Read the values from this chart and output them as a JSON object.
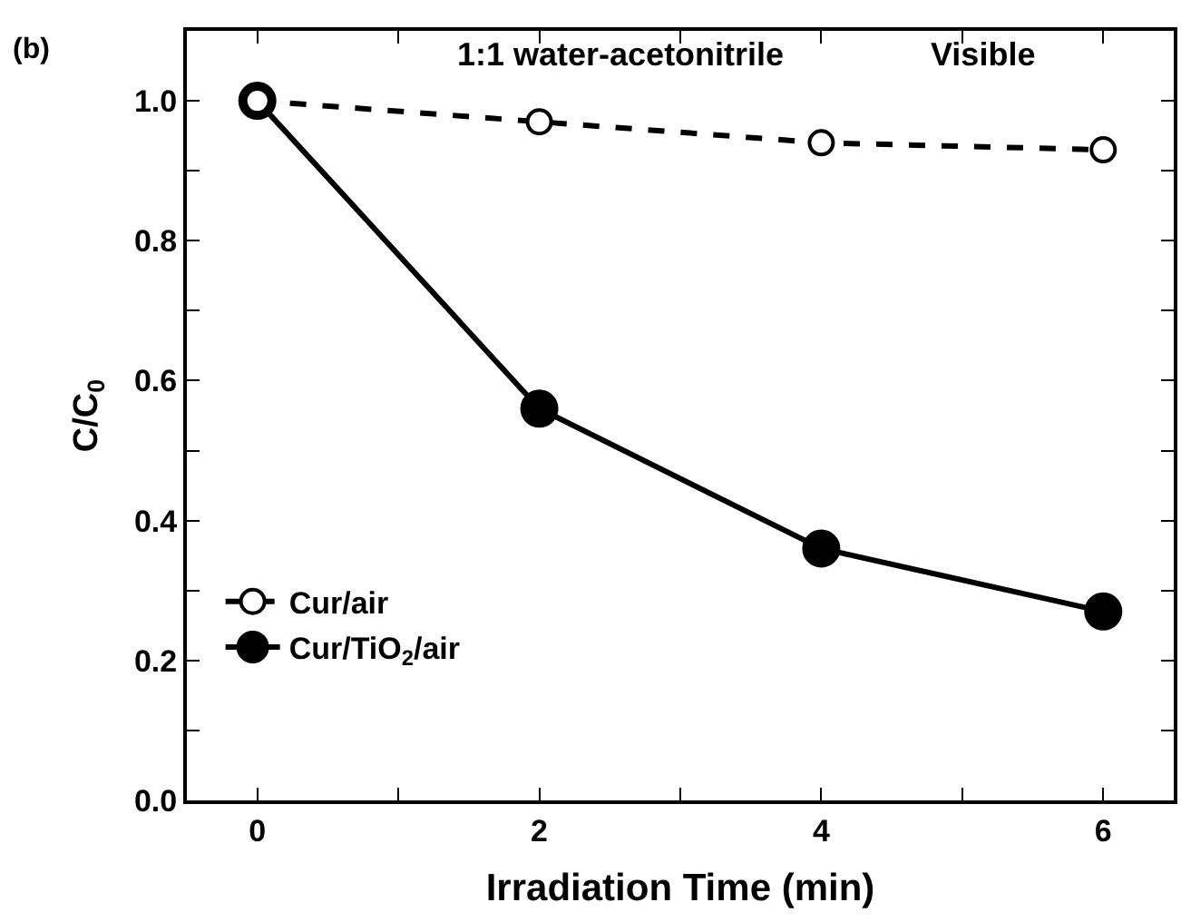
{
  "chart_data": {
    "type": "line",
    "xlabel": "Irradiation Time (min)",
    "ylabel": "C/C$_{0}$",
    "x": [
      0,
      2,
      4,
      6
    ],
    "series": [
      {
        "name": "Cur/air",
        "color": "#000000",
        "values": [
          1.0,
          0.97,
          0.94,
          0.93
        ],
        "line_style": "dashed",
        "marker": "circle-open"
      },
      {
        "name": "Cur/TiO$_{2}$/air",
        "color": "#000000",
        "values": [
          1.0,
          0.56,
          0.36,
          0.27
        ],
        "line_style": "solid",
        "marker": "circle"
      }
    ],
    "xlim": [
      -0.5,
      6.5
    ],
    "ylim": [
      0,
      1.1
    ],
    "xticks": [
      0,
      {
        "value": 1,
        "label": null
      },
      2,
      {
        "value": 3,
        "label": null
      },
      4,
      {
        "value": 5,
        "label": null
      },
      6
    ],
    "yticks": [
      "0.0",
      {
        "value": 0.1,
        "label": null
      },
      0.2,
      {
        "value": 0.3,
        "label": null
      },
      0.4,
      {
        "value": 0.5,
        "label": null
      },
      0.6,
      {
        "value": 0.7,
        "label": null
      },
      0.8,
      {
        "value": 0.9,
        "label": null
      },
      "1.0"
    ],
    "annotations": [
      "(b)",
      "1:1 water-acetonitrile",
      "Visible"
    ],
    "legend": "bottom left"
  }
}
